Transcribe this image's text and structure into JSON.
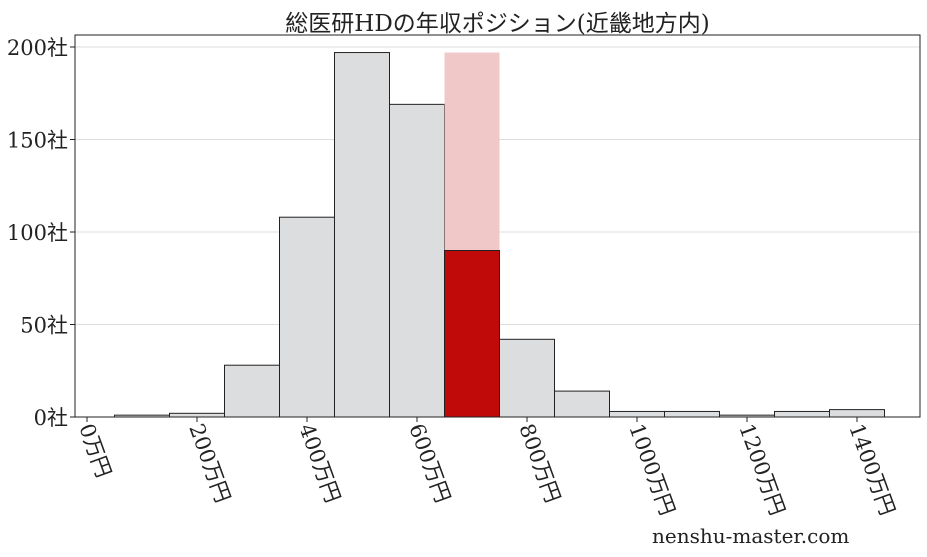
{
  "chart_data": {
    "type": "bar",
    "title": "総医研HDの年収ポジション(近畿地方内)",
    "bin_edges": [
      50,
      150,
      250,
      350,
      450,
      550,
      650,
      750,
      850,
      950,
      1050,
      1150,
      1250,
      1350,
      1450
    ],
    "values": [
      1,
      2,
      28,
      108,
      197,
      169,
      90,
      42,
      14,
      3,
      3,
      1,
      3,
      4
    ],
    "highlight": {
      "bin_index": 6,
      "value": 90,
      "total": 197,
      "color": "#c00a0a",
      "background_color": "#f0c8c8"
    },
    "bar_color": "#dcdddf",
    "xticks": [
      0,
      200,
      400,
      600,
      800,
      1000,
      1200,
      1400
    ],
    "xtick_labels": [
      "0万円",
      "200万円",
      "400万円",
      "600万円",
      "800万円",
      "1000万円",
      "1200万円",
      "1400万円"
    ],
    "yticks": [
      0,
      50,
      100,
      150,
      200
    ],
    "ytick_labels": [
      "0社",
      "50社",
      "100社",
      "150社",
      "200社"
    ],
    "xlim": [
      -20,
      1490
    ],
    "ylim": [
      0,
      201
    ],
    "grid": "horizontal"
  },
  "watermark": "nenshu-master.com"
}
